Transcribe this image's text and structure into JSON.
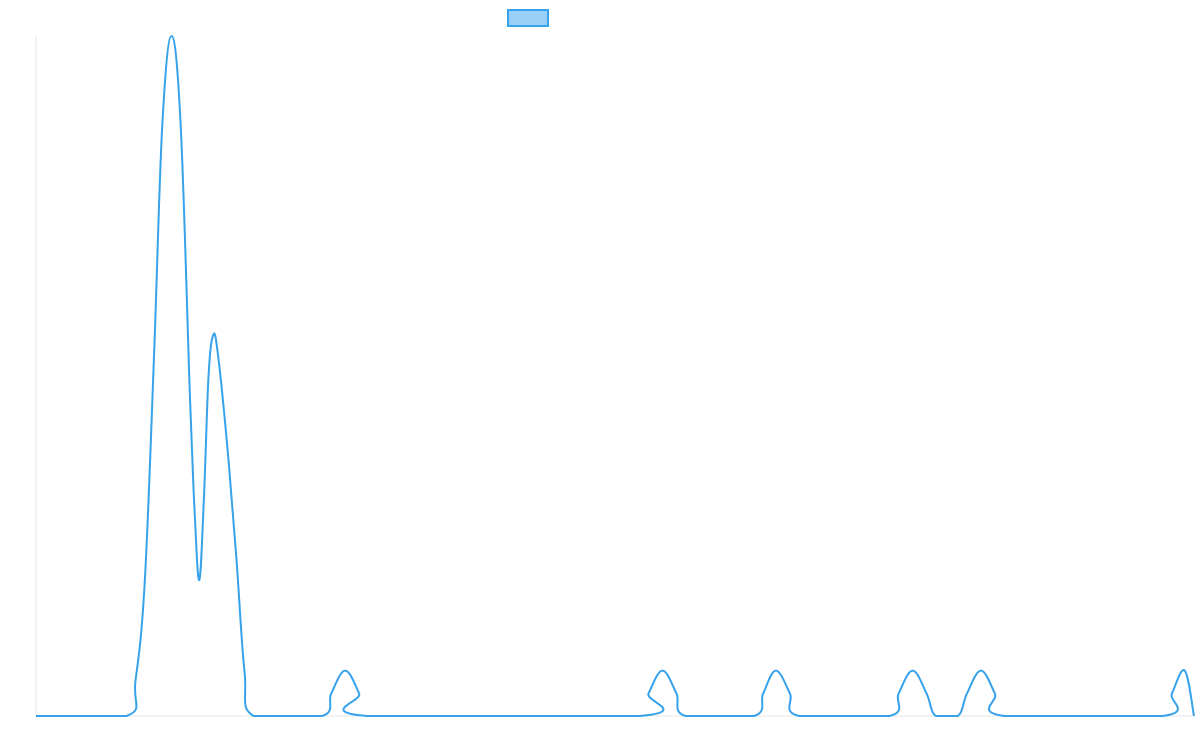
{
  "chart_data": {
    "type": "line",
    "title": "",
    "xlabel": "",
    "ylabel": "",
    "grid": false,
    "legend": {
      "placement": "top-center",
      "entries": [
        {
          "name": ""
        }
      ]
    },
    "xlim": [
      0,
      1
    ],
    "ylim": [
      0,
      15
    ],
    "series": [
      {
        "name": "",
        "color": "#36a2eb",
        "fill": "#9ad0f5",
        "points": [
          [
            0.0,
            0
          ],
          [
            0.078,
            0
          ],
          [
            0.086,
            0.8
          ],
          [
            0.094,
            3
          ],
          [
            0.102,
            8
          ],
          [
            0.109,
            13
          ],
          [
            0.117,
            15
          ],
          [
            0.125,
            13
          ],
          [
            0.133,
            7
          ],
          [
            0.137,
            4.5
          ],
          [
            0.141,
            3
          ],
          [
            0.145,
            4.8
          ],
          [
            0.149,
            7.5
          ],
          [
            0.153,
            8.4
          ],
          [
            0.157,
            8
          ],
          [
            0.165,
            6
          ],
          [
            0.173,
            3.5
          ],
          [
            0.18,
            1
          ],
          [
            0.188,
            0
          ],
          [
            0.247,
            0
          ],
          [
            0.255,
            0.5
          ],
          [
            0.267,
            1
          ],
          [
            0.279,
            0.5
          ],
          [
            0.286,
            0
          ],
          [
            0.521,
            0
          ],
          [
            0.529,
            0.5
          ],
          [
            0.541,
            1
          ],
          [
            0.553,
            0.5
          ],
          [
            0.561,
            0
          ],
          [
            0.62,
            0
          ],
          [
            0.628,
            0.5
          ],
          [
            0.639,
            1
          ],
          [
            0.651,
            0.5
          ],
          [
            0.659,
            0
          ],
          [
            0.737,
            0
          ],
          [
            0.745,
            0.5
          ],
          [
            0.757,
            1
          ],
          [
            0.769,
            0.5
          ],
          [
            0.777,
            0
          ],
          [
            0.796,
            0
          ],
          [
            0.804,
            0.5
          ],
          [
            0.816,
            1
          ],
          [
            0.828,
            0.5
          ],
          [
            0.836,
            0
          ],
          [
            0.973,
            0
          ],
          [
            0.981,
            0.5
          ],
          [
            0.992,
            1
          ],
          [
            1.0,
            0
          ]
        ]
      }
    ]
  }
}
